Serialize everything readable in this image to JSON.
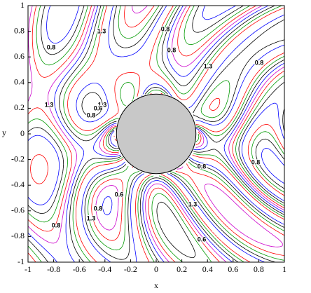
{
  "chart_data": {
    "type": "contour",
    "xlabel": "x",
    "ylabel": "y",
    "xlim": [
      -1,
      1
    ],
    "ylim": [
      -1,
      1
    ],
    "xticks": [
      -1,
      -0.8,
      -0.6,
      -0.4,
      -0.2,
      0,
      0.2,
      0.4,
      0.6,
      0.8,
      1
    ],
    "yticks": [
      -1,
      -0.8,
      -0.6,
      -0.4,
      -0.2,
      0,
      0.2,
      0.4,
      0.6,
      0.8,
      1
    ],
    "series": [
      {
        "color": "#0000ff",
        "dashed": false,
        "levels": [
          0.2,
          0.45,
          0.7,
          0.95,
          1.2,
          1.45,
          1.7
        ]
      },
      {
        "color": "#009900",
        "dashed": false,
        "levels": [
          0.3,
          0.55,
          0.8,
          1.05,
          1.3,
          1.55
        ]
      },
      {
        "color": "#ff0000",
        "dashed": true,
        "levels": [
          0.35,
          0.6,
          0.85,
          1.1,
          1.35,
          1.6
        ]
      },
      {
        "color": "#000000",
        "dashed": false,
        "levels": [
          0.25,
          0.5,
          0.75,
          1.0,
          1.25,
          1.5
        ]
      },
      {
        "color": "#cc00cc",
        "dashed": false,
        "levels": [
          0.4,
          0.9,
          1.4
        ]
      }
    ],
    "contour_labels": [
      1.3,
      0.8,
      0.8,
      0.8,
      1.3,
      0.8,
      1.3,
      1.3,
      0.8,
      0.8,
      0.6,
      0.8,
      0.8,
      1.3,
      0.6,
      1.3,
      0.8,
      0.6
    ]
  }
}
